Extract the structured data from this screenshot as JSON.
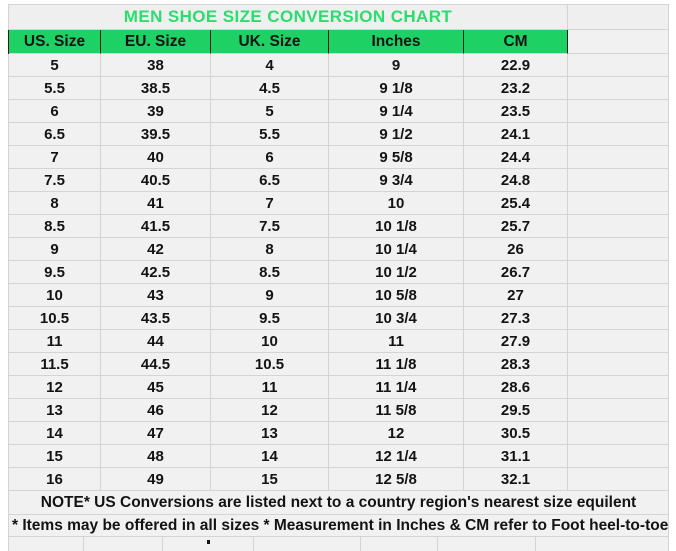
{
  "title": "MEN SHOE SIZE CONVERSION CHART",
  "colors": {
    "header_green": "#1ed165",
    "title_green": "#2bdd6d",
    "cell_background": "#f1f1f1",
    "gridline": "#d4d4d4",
    "header_divider": "#1e1e1e",
    "text": "#131313"
  },
  "notes": {
    "note1": "NOTE* US Conversions are listed next to a country region's nearest size equilent",
    "note2": "* Items may be offered in all sizes * Measurement in Inches & CM refer to Foot heel-to-toe"
  },
  "chart_data": {
    "type": "table",
    "title": "MEN SHOE SIZE CONVERSION CHART",
    "columns": [
      "US. Size",
      "EU. Size",
      "UK. Size",
      "Inches",
      "CM"
    ],
    "rows": [
      [
        "5",
        "38",
        "4",
        "9",
        "22.9"
      ],
      [
        "5.5",
        "38.5",
        "4.5",
        "9 1/8",
        "23.2"
      ],
      [
        "6",
        "39",
        "5",
        "9 1/4",
        "23.5"
      ],
      [
        "6.5",
        "39.5",
        "5.5",
        "9 1/2",
        "24.1"
      ],
      [
        "7",
        "40",
        "6",
        "9 5/8",
        "24.4"
      ],
      [
        "7.5",
        "40.5",
        "6.5",
        "9 3/4",
        "24.8"
      ],
      [
        "8",
        "41",
        "7",
        "10",
        "25.4"
      ],
      [
        "8.5",
        "41.5",
        "7.5",
        "10 1/8",
        "25.7"
      ],
      [
        "9",
        "42",
        "8",
        "10 1/4",
        "26"
      ],
      [
        "9.5",
        "42.5",
        "8.5",
        "10 1/2",
        "26.7"
      ],
      [
        "10",
        "43",
        "9",
        "10 5/8",
        "27"
      ],
      [
        "10.5",
        "43.5",
        "9.5",
        "10 3/4",
        "27.3"
      ],
      [
        "11",
        "44",
        "10",
        "11",
        "27.9"
      ],
      [
        "11.5",
        "44.5",
        "10.5",
        "11 1/8",
        "28.3"
      ],
      [
        "12",
        "45",
        "11",
        "11 1/4",
        "28.6"
      ],
      [
        "13",
        "46",
        "12",
        "11 5/8",
        "29.5"
      ],
      [
        "14",
        "47",
        "13",
        "12",
        "30.5"
      ],
      [
        "15",
        "48",
        "14",
        "12 1/4",
        "31.1"
      ],
      [
        "16",
        "49",
        "15",
        "12 5/8",
        "32.1"
      ]
    ]
  }
}
